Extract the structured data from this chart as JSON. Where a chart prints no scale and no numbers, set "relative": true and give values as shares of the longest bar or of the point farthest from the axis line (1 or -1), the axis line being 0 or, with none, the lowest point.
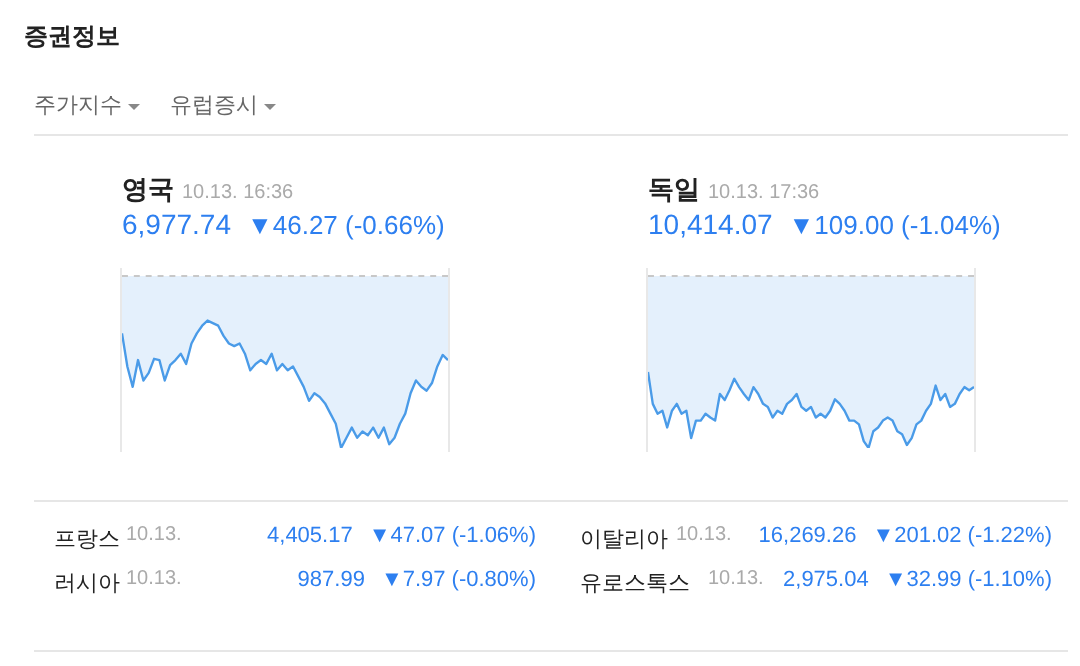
{
  "chart_data": [
    {
      "type": "other",
      "title": "증권정보",
      "annotations": [
        "주가지수",
        "유럽증시"
      ]
    },
    {
      "type": "area",
      "title": "영국",
      "subtitle": "10.13. 16:36",
      "annotations": [
        "6,977.74",
        "▼46.27 (-0.66%)"
      ],
      "relative": true,
      "categories": [
        null,
        null,
        null,
        null,
        null,
        null,
        null,
        null,
        null,
        null,
        null,
        null,
        null,
        null,
        null,
        null,
        null,
        null,
        null,
        null,
        null,
        null,
        null,
        null,
        null,
        null,
        null,
        null,
        null,
        null,
        null,
        null,
        null,
        null,
        null,
        null,
        null,
        null,
        null,
        null,
        null,
        null,
        null,
        null,
        null,
        null,
        null,
        null,
        null,
        null,
        null,
        null,
        null,
        null,
        null,
        null,
        null,
        null,
        null,
        null,
        null,
        null
      ],
      "series": [
        {
          "color": "#4a9be8",
          "values": [
            0.9,
            0.64,
            0.48,
            0.69,
            0.53,
            0.59,
            0.7,
            0.69,
            0.53,
            0.65,
            0.69,
            0.74,
            0.66,
            0.82,
            0.9,
            0.96,
            1,
            0.98,
            0.96,
            0.88,
            0.82,
            0.8,
            0.82,
            0.74,
            0.61,
            0.66,
            0.69,
            0.66,
            0.74,
            0.61,
            0.66,
            0.61,
            0.64,
            0.56,
            0.48,
            0.37,
            0.43,
            0.4,
            0.35,
            0.27,
            0.19,
            0,
            0.08,
            0.16,
            0.08,
            0.13,
            0.1,
            0.16,
            0.08,
            0.16,
            0.03,
            0.08,
            0.19,
            0.27,
            0.43,
            0.53,
            0.48,
            0.45,
            0.51,
            0.64,
            0.73,
            0.69
          ]
        }
      ],
      "ref_lines": [
        {
          "axis": "y",
          "value": 1.35,
          "color": "#c8c8c8",
          "line_style": "dashed"
        }
      ],
      "legend": false
    },
    {
      "type": "area",
      "title": "독일",
      "subtitle": "10.13. 17:36",
      "annotations": [
        "10,414.07",
        "▼109.00 (-1.04%)"
      ],
      "relative": true,
      "categories": [
        null,
        null,
        null,
        null,
        null,
        null,
        null,
        null,
        null,
        null,
        null,
        null,
        null,
        null,
        null,
        null,
        null,
        null,
        null,
        null,
        null,
        null,
        null,
        null,
        null,
        null,
        null,
        null,
        null,
        null,
        null,
        null,
        null,
        null,
        null,
        null,
        null,
        null,
        null,
        null,
        null,
        null,
        null,
        null,
        null,
        null,
        null,
        null,
        null,
        null,
        null,
        null,
        null,
        null,
        null,
        null,
        null,
        null,
        null,
        null,
        null,
        null,
        null,
        null,
        null,
        null,
        null,
        null,
        null
      ],
      "series": [
        {
          "color": "#4a9be8",
          "values": [
            1,
            0.58,
            0.45,
            0.49,
            0.27,
            0.49,
            0.58,
            0.45,
            0.49,
            0.13,
            0.36,
            0.36,
            0.45,
            0.4,
            0.36,
            0.71,
            0.63,
            0.76,
            0.91,
            0.8,
            0.71,
            0.63,
            0.8,
            0.71,
            0.58,
            0.54,
            0.4,
            0.49,
            0.45,
            0.58,
            0.63,
            0.71,
            0.54,
            0.49,
            0.54,
            0.4,
            0.45,
            0.4,
            0.49,
            0.64,
            0.58,
            0.49,
            0.36,
            0.36,
            0.31,
            0.09,
            0,
            0.22,
            0.27,
            0.36,
            0.4,
            0.36,
            0.22,
            0.18,
            0.04,
            0.13,
            0.31,
            0.36,
            0.49,
            0.58,
            0.82,
            0.63,
            0.71,
            0.54,
            0.58,
            0.71,
            0.8,
            0.76,
            0.8
          ]
        }
      ],
      "ref_lines": [
        {
          "axis": "y",
          "value": 2.26,
          "color": "#c8c8c8",
          "line_style": "dashed"
        }
      ],
      "legend": false
    },
    {
      "type": "other",
      "annotations": [
        "프랑스",
        "10.13.",
        "4,405.17",
        "▼47.07 (-1.06%)",
        "이탈리아",
        "10.13.",
        "16,269.26",
        "▼201.02 (-1.22%)",
        "러시아",
        "10.13.",
        "987.99",
        "▼7.97 (-0.80%)",
        "유로스톡스",
        "10.13.",
        "2,975.04",
        "▼32.99 (-1.10%)"
      ]
    }
  ]
}
